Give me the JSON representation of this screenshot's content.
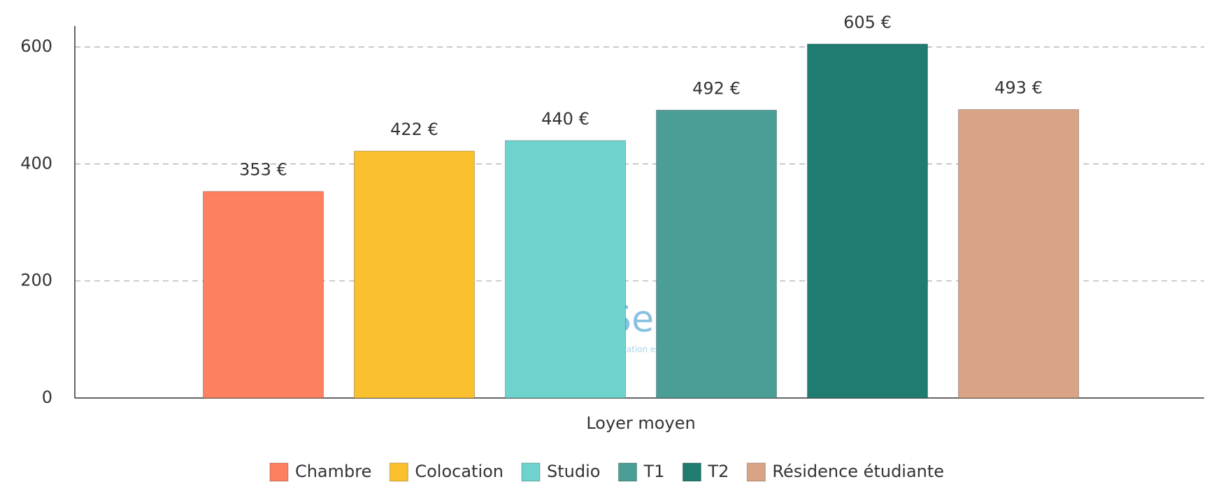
{
  "chart_data": {
    "type": "bar",
    "categories": [
      "Loyer moyen"
    ],
    "series": [
      {
        "name": "Chambre",
        "color": "#fd8060",
        "values": [
          353
        ],
        "value_labels": [
          "353 €"
        ]
      },
      {
        "name": "Colocation",
        "color": "#fbc02d",
        "values": [
          422
        ],
        "value_labels": [
          "422 €"
        ]
      },
      {
        "name": "Studio",
        "color": "#6dd3cc",
        "values": [
          440
        ],
        "value_labels": [
          "440 €"
        ]
      },
      {
        "name": "T1",
        "color": "#4a9e96",
        "values": [
          492
        ],
        "value_labels": [
          "492 €"
        ]
      },
      {
        "name": "T2",
        "color": "#207b70",
        "values": [
          605
        ],
        "value_labels": [
          "605 €"
        ]
      },
      {
        "name": "Résidence étudiante",
        "color": "#d9a386",
        "values": [
          493
        ],
        "value_labels": [
          "493 €"
        ]
      }
    ],
    "ylim": [
      0,
      636
    ],
    "yticks": [
      0,
      200,
      400,
      600
    ],
    "grid": true,
    "legend": "bottom",
    "watermark": "LOCService",
    "watermark_subtitle": "Location & Colocation entre particuliers"
  }
}
